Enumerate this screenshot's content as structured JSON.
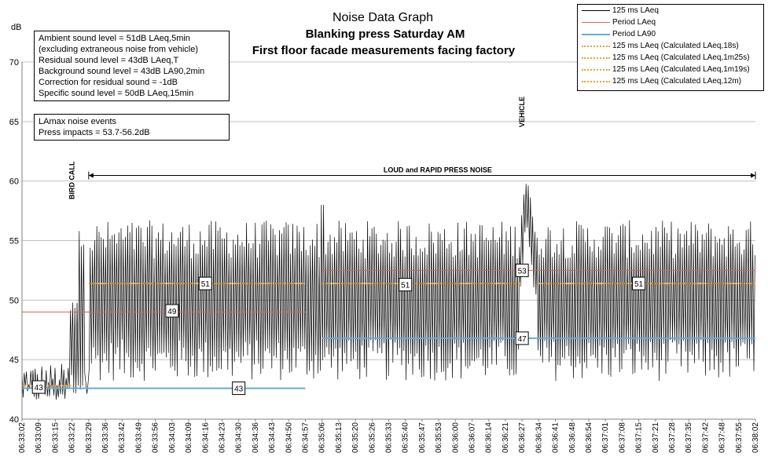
{
  "chart_data": {
    "type": "line",
    "title_lines": [
      "Noise Data Graph",
      "Blanking press Saturday AM",
      "First floor facade measurements facing factory"
    ],
    "ylabel": "dB",
    "xlabel": "",
    "ylim": [
      40,
      70
    ],
    "yticks": [
      "40",
      "45",
      "50",
      "55",
      "60",
      "65",
      "70"
    ],
    "x_tick_labels": [
      "06:33:02",
      "06:33:09",
      "06:33:15",
      "06:33:22",
      "06:33:29",
      "06:33:36",
      "06:33:42",
      "06:33:49",
      "06:33:56",
      "06:34:03",
      "06:34:09",
      "06:34:16",
      "06:34:23",
      "06:34:30",
      "06:34:36",
      "06:34:43",
      "06:34:50",
      "06:34:57",
      "06:35:06",
      "06:35:13",
      "06:35:20",
      "06:35:26",
      "06:35:33",
      "06:35:40",
      "06:35:47",
      "06:35:53",
      "06:36:00",
      "06:36:07",
      "06:36:14",
      "06:36:21",
      "06:36:27",
      "06:36:34",
      "06:36:41",
      "06:36:48",
      "06:36:54",
      "06:37:01",
      "06:37:08",
      "06:37:15",
      "06:37:21",
      "06:37:28",
      "06:37:35",
      "06:37:42",
      "06:37:48",
      "06:37:55",
      "06:38:02"
    ],
    "grid": "horizontal",
    "legend_position": "top-right",
    "series": [
      {
        "name": "125 ms LAeq",
        "color": "#000000",
        "style": "rapid fluctuating trace",
        "min": 41.2,
        "max": 59.8
      },
      {
        "name": "Period LAeq",
        "color": "#cc6666",
        "segments": [
          {
            "x": [
              "06:33:02",
              "06:34:57"
            ],
            "value": 49
          },
          {
            "x": [
              "06:35:06",
              "06:38:02"
            ],
            "value": 52.5
          }
        ]
      },
      {
        "name": "Period LA90",
        "color": "#66aadd",
        "segments": [
          {
            "x": [
              "06:33:02",
              "06:34:57"
            ],
            "value": 42.6
          },
          {
            "x": [
              "06:35:06",
              "06:38:02"
            ],
            "value": 46.8
          }
        ]
      },
      {
        "name": "125 ms LAeq (Calculated LAeq,18s)",
        "color": "#e8a33a",
        "segments": [
          {
            "x": [
              "06:33:02",
              "06:33:22"
            ],
            "value": 42.8
          }
        ]
      },
      {
        "name": "125 ms LAeq (Calculated LAeq,1m25s)",
        "color": "#e8a33a",
        "segments": [
          {
            "x": [
              "06:33:29",
              "06:34:57"
            ],
            "value": 51.4
          }
        ]
      },
      {
        "name": "125 ms LAeq (Calculated LAeq,1m19s)",
        "color": "#e8a33a",
        "segments": [
          {
            "x": [
              "06:35:06",
              "06:36:27"
            ],
            "value": 51.4
          }
        ]
      },
      {
        "name": "125 ms LAeq (Calculated LAeq,12m)",
        "color": "#e8a33a",
        "segments": [
          {
            "x": [
              "06:36:34",
              "06:38:02"
            ],
            "value": 51.4
          }
        ]
      }
    ],
    "value_labels": [
      {
        "text": "43",
        "x": "06:33:09",
        "y": 42.7
      },
      {
        "text": "43",
        "x": "06:34:30",
        "y": 42.6
      },
      {
        "text": "49",
        "x": "06:34:03",
        "y": 49.1
      },
      {
        "text": "51",
        "x": "06:34:16",
        "y": 51.4
      },
      {
        "text": "51",
        "x": "06:35:40",
        "y": 51.3
      },
      {
        "text": "51",
        "x": "06:37:15",
        "y": 51.4
      },
      {
        "text": "53",
        "x": "06:36:27",
        "y": 52.5
      },
      {
        "text": "47",
        "x": "06:36:27",
        "y": 46.8
      }
    ],
    "annotations": [
      {
        "text": "BIRD CALL",
        "x": "06:33:22",
        "orientation": "vertical"
      },
      {
        "text": "VEHICLE",
        "x": "06:36:27",
        "orientation": "vertical"
      },
      {
        "text": "LOUD and RAPID PRESS NOISE",
        "x_range": [
          "06:33:29",
          "06:38:02"
        ],
        "y": 61
      }
    ],
    "notes": [
      [
        "Ambient sound level = 51dB LAeq,5min",
        "(excluding extraneous noise from vehicle)",
        "Residual sound level = 43dB LAeq,T",
        "Background sound level = 43dB LA90,2min",
        "Correction for residual sound = -1dB",
        "Specific sound level = 50dB LAeq,15min"
      ],
      [
        "LAmax noise events",
        "Press impacts = 53.7-56.2dB"
      ]
    ]
  }
}
